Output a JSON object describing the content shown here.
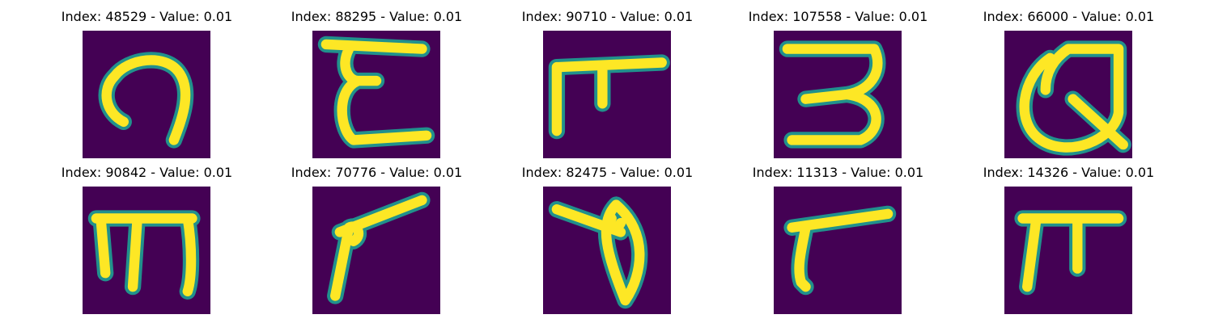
{
  "figure": {
    "panels": [
      {
        "title": "Index: 48529 - Value: 0.01",
        "glyph": "curl-glyph"
      },
      {
        "title": "Index: 88295 - Value: 0.01",
        "glyph": "epsilon-glyph"
      },
      {
        "title": "Index: 90710 - Value: 0.01",
        "glyph": "tee-glyph"
      },
      {
        "title": "Index: 107558 - Value: 0.01",
        "glyph": "three-glyph"
      },
      {
        "title": "Index: 66000 - Value: 0.01",
        "glyph": "loop-q-glyph"
      },
      {
        "title": "Index: 90842 - Value: 0.01",
        "glyph": "m-shape-glyph"
      },
      {
        "title": "Index: 70776 - Value: 0.01",
        "glyph": "angled-stroke-glyph"
      },
      {
        "title": "Index: 82475 - Value: 0.01",
        "glyph": "theta-glyph"
      },
      {
        "title": "Index: 11313 - Value: 0.01",
        "glyph": "hook-glyph"
      },
      {
        "title": "Index: 14326 - Value: 0.01",
        "glyph": "pi-glyph"
      }
    ],
    "colors": {
      "background": "#440154",
      "edge": "#21918c",
      "stroke": "#fde725"
    }
  }
}
